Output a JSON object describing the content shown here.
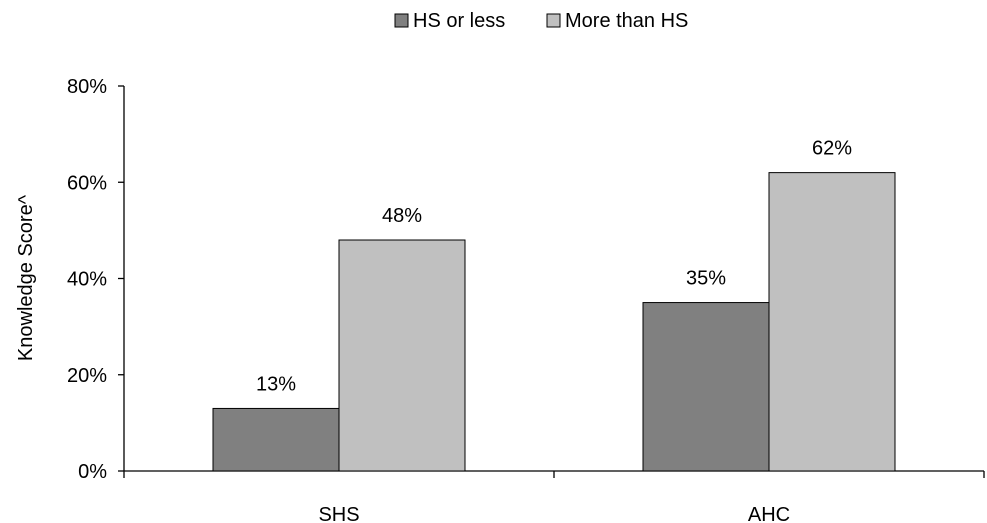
{
  "chart_data": {
    "type": "bar",
    "categories": [
      "SHS",
      "AHC"
    ],
    "series": [
      {
        "name": "HS or less",
        "values": [
          13,
          35
        ],
        "color": "#808080"
      },
      {
        "name": "More than HS",
        "values": [
          48,
          62
        ],
        "color": "#c0c0c0"
      }
    ],
    "data_labels": [
      [
        "13%",
        "35%"
      ],
      [
        "48%",
        "62%"
      ]
    ],
    "title": "",
    "xlabel": "",
    "ylabel": "Knowledge Score^",
    "ylim": [
      0,
      80
    ],
    "yticks": [
      0,
      20,
      40,
      60,
      80
    ],
    "ytick_labels": [
      "0%",
      "20%",
      "40%",
      "60%",
      "80%"
    ],
    "legend_position": "top-center",
    "grid": false
  }
}
